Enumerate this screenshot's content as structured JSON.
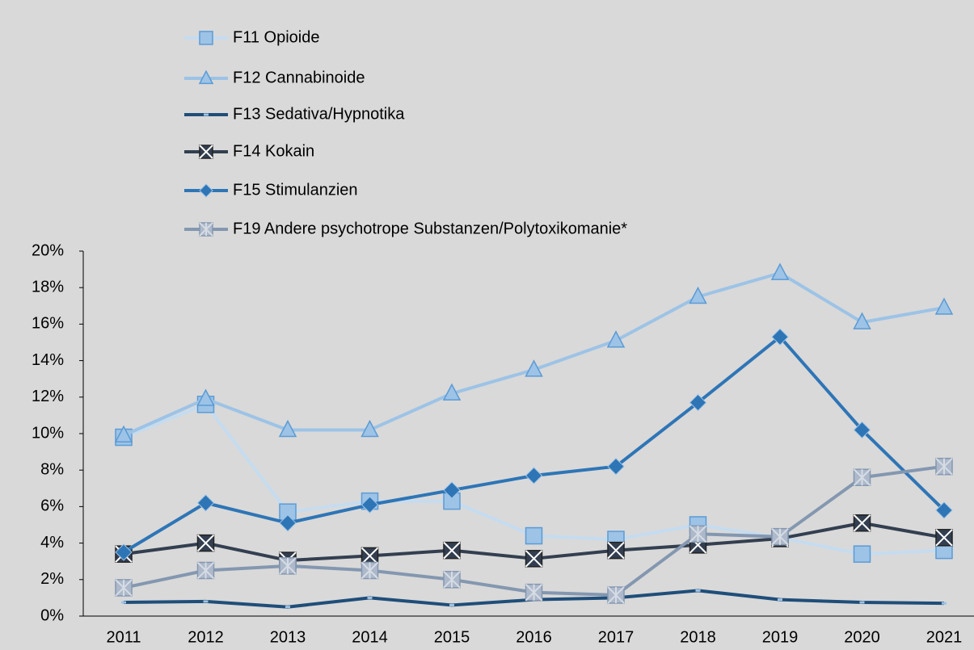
{
  "chart_data": {
    "type": "line",
    "categories": [
      "2011",
      "2012",
      "2013",
      "2014",
      "2015",
      "2016",
      "2017",
      "2018",
      "2019",
      "2020",
      "2021"
    ],
    "series": [
      {
        "name": "F11 Opioide",
        "color": "#c5dcf0",
        "marker_color": "#9dc3e6",
        "marker": "square",
        "values": [
          9.8,
          11.6,
          5.7,
          6.3,
          6.3,
          4.4,
          4.2,
          5.0,
          4.3,
          3.4,
          3.6
        ]
      },
      {
        "name": "F12 Cannabinoide",
        "color": "#9dc3e6",
        "marker_color": "#9dc3e6",
        "marker": "triangle",
        "values": [
          9.9,
          11.9,
          10.2,
          10.2,
          12.2,
          13.5,
          15.1,
          17.5,
          18.8,
          16.1,
          16.9
        ]
      },
      {
        "name": "F13 Sedativa/Hypnotika",
        "color": "#1f4e79",
        "marker_color": "#1f4e79",
        "marker": "dash",
        "values": [
          0.75,
          0.8,
          0.5,
          1.0,
          0.6,
          0.9,
          1.0,
          1.4,
          0.9,
          0.75,
          0.7
        ]
      },
      {
        "name": "F14 Kokain",
        "color": "#333f50",
        "marker_color": "#333f50",
        "marker": "x-square",
        "values": [
          3.4,
          4.0,
          3.05,
          3.3,
          3.6,
          3.15,
          3.6,
          3.9,
          4.25,
          5.1,
          4.3
        ]
      },
      {
        "name": "F15 Stimulanzien",
        "color": "#2e75b6",
        "marker_color": "#2e75b6",
        "marker": "diamond",
        "values": [
          3.5,
          6.2,
          5.1,
          6.1,
          6.9,
          7.7,
          8.2,
          11.7,
          15.3,
          10.2,
          5.8
        ]
      },
      {
        "name": "F19 Andere psychotrope Substanzen/Polytoxikomanie*",
        "color": "#8497b0",
        "marker_color": "#adb9ca",
        "marker": "star-square",
        "values": [
          1.55,
          2.5,
          2.75,
          2.5,
          2.0,
          1.3,
          1.15,
          4.5,
          4.35,
          7.6,
          8.2
        ]
      }
    ],
    "ylim": [
      0,
      20
    ],
    "yticks": [
      {
        "value": 0,
        "label": "0%"
      },
      {
        "value": 2,
        "label": "2%"
      },
      {
        "value": 4,
        "label": "4%"
      },
      {
        "value": 6,
        "label": "6%"
      },
      {
        "value": 8,
        "label": "8%"
      },
      {
        "value": 10,
        "label": "10%"
      },
      {
        "value": 12,
        "label": "12%"
      },
      {
        "value": 14,
        "label": "14%"
      },
      {
        "value": 16,
        "label": "16%"
      },
      {
        "value": 18,
        "label": "18%"
      },
      {
        "value": 20,
        "label": "20%"
      }
    ],
    "grid": false,
    "legend": "top"
  }
}
